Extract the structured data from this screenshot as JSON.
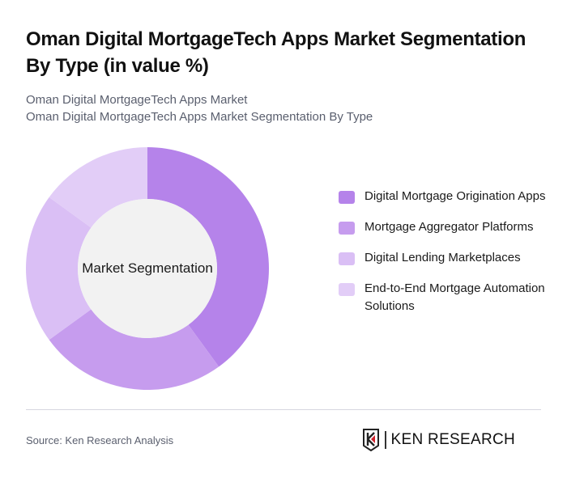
{
  "title": "Oman Digital MortgageTech Apps Market Segmentation By Type (in value %)",
  "subtitle_lines": [
    "Oman Digital MortgageTech Apps Market",
    "Oman Digital MortgageTech Apps Market Segmentation By Type"
  ],
  "center_label": "Market Segmentation",
  "legend": [
    {
      "label": "Digital Mortgage Origination Apps",
      "color": "#b583ea"
    },
    {
      "label": "Mortgage Aggregator Platforms",
      "color": "#c69cee"
    },
    {
      "label": "Digital Lending Marketplaces",
      "color": "#dabff5"
    },
    {
      "label": "End-to-End Mortgage Automation Solutions",
      "color": "#e2cdf7"
    }
  ],
  "source": "Source: Ken Research Analysis",
  "logo_text": "KEN RESEARCH",
  "chart_data": {
    "type": "pie",
    "variant": "donut",
    "title": "Oman Digital MortgageTech Apps Market Segmentation By Type (in value %)",
    "center_text": "Market Segmentation",
    "categories": [
      "Digital Mortgage Origination Apps",
      "Mortgage Aggregator Platforms",
      "Digital Lending Marketplaces",
      "End-to-End Mortgage Automation Solutions"
    ],
    "values": [
      40,
      25,
      20,
      15
    ],
    "colors": [
      "#b583ea",
      "#c69cee",
      "#dabff5",
      "#e2cdf7"
    ],
    "legend_position": "right",
    "start_angle": "top, clockwise"
  }
}
